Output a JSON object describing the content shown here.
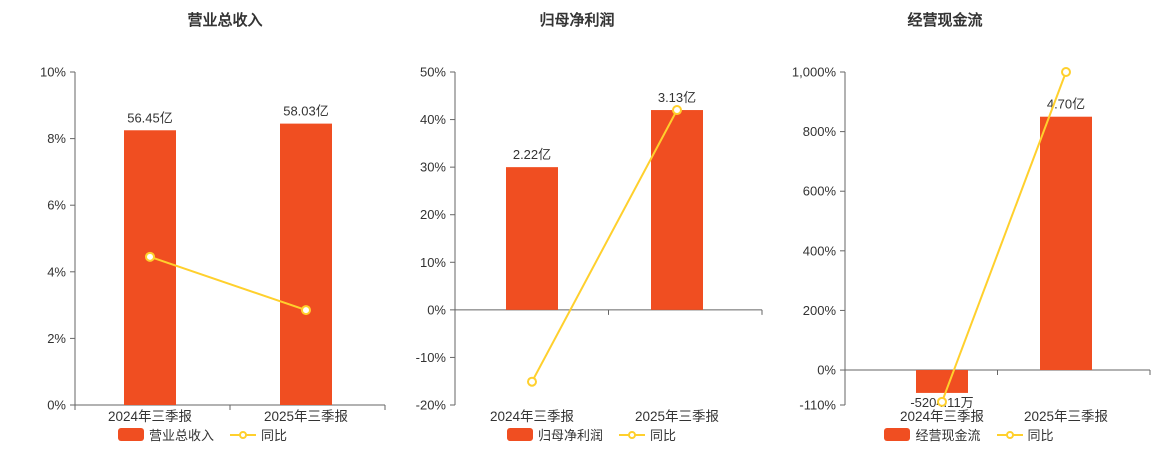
{
  "page": {
    "background": "#ffffff"
  },
  "colors": {
    "bar": "#f04e21",
    "line": "#ffd02d",
    "axis": "#666666",
    "text": "#333333",
    "title": "#333333",
    "divider": "#d8d8d8"
  },
  "chart_data": [
    {
      "type": "bar",
      "title": "营业总收入",
      "categories": [
        "2024年三季报",
        "2025年三季报"
      ],
      "bar_series_name": "营业总收入",
      "bar_labels": [
        "56.45亿",
        "58.03亿"
      ],
      "bar_plot_pct": [
        8.25,
        8.45
      ],
      "line_series_name": "同比",
      "line_values_pct": [
        4.45,
        2.85
      ],
      "ylim": [
        0,
        10
      ],
      "yticks": [
        0,
        2,
        4,
        6,
        8,
        10
      ],
      "ytick_labels": [
        "0%",
        "2%",
        "4%",
        "6%",
        "8%",
        "10%"
      ],
      "xlabel": "",
      "ylabel": "",
      "grid": false,
      "legend_position": "bottom"
    },
    {
      "type": "bar",
      "title": "归母净利润",
      "categories": [
        "2024年三季报",
        "2025年三季报"
      ],
      "bar_series_name": "归母净利润",
      "bar_labels": [
        "2.22亿",
        "3.13亿"
      ],
      "bar_plot_pct": [
        30,
        42
      ],
      "line_series_name": "同比",
      "line_values_pct": [
        -15.1,
        42
      ],
      "ylim": [
        -20,
        50
      ],
      "yticks": [
        -20,
        -10,
        0,
        10,
        20,
        30,
        40,
        50
      ],
      "ytick_labels": [
        "-20%",
        "-10%",
        "0%",
        "10%",
        "20%",
        "30%",
        "40%",
        "50%"
      ],
      "xlabel": "",
      "ylabel": "",
      "grid": false,
      "legend_position": "bottom"
    },
    {
      "type": "bar",
      "title": "经营现金流",
      "categories": [
        "2024年三季报",
        "2025年三季报"
      ],
      "bar_series_name": "经营现金流",
      "bar_labels": [
        "-5204.11万",
        "4.70亿"
      ],
      "bar_plot_pct": [
        -72,
        850
      ],
      "line_series_name": "同比",
      "line_values_pct": [
        -100,
        1000
      ],
      "ylim": [
        -110,
        1000
      ],
      "yticks": [
        -110,
        0,
        200,
        400,
        600,
        800,
        1000
      ],
      "ytick_labels": [
        "-110%",
        "0%",
        "200%",
        "400%",
        "600%",
        "800%",
        "1,000%"
      ],
      "neg_span_frac": 0.105,
      "xlabel": "",
      "ylabel": "",
      "grid": false,
      "legend_position": "bottom"
    }
  ]
}
